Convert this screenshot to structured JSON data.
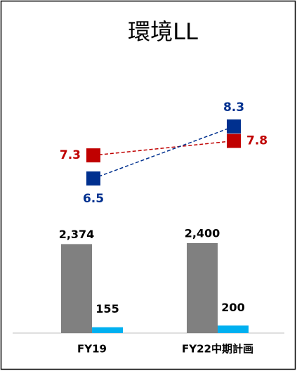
{
  "chart_data": [
    {
      "type": "bar",
      "title": "環境LL",
      "categories": [
        "FY19",
        "FY22中期計画"
      ],
      "series": [
        {
          "color": "#808080",
          "values": [
            2374,
            2400
          ],
          "value_labels": [
            "2,374",
            "2,400"
          ]
        },
        {
          "color": "#00b0f0",
          "values": [
            155,
            200
          ]
        }
      ]
    },
    {
      "type": "line",
      "series": [
        {
          "color": "#c00000",
          "values": [
            7.3,
            7.8
          ]
        },
        {
          "color": "#00308f",
          "values": [
            6.5,
            8.3
          ]
        }
      ]
    }
  ]
}
